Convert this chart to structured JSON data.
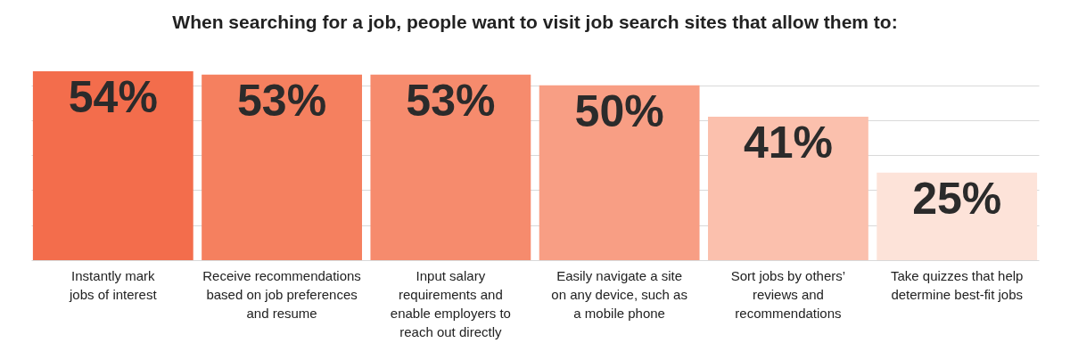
{
  "chart_data": {
    "type": "bar",
    "title": "When searching for a job, people want to visit job search sites that allow them to:",
    "categories": [
      "Instantly mark\njobs of interest",
      "Receive recommendations\nbased on job preferences\nand resume",
      "Input salary\nrequirements and\nenable employers to\nreach out directly",
      "Easily navigate a site\non any device, such as\na mobile phone",
      "Sort jobs by others’\nreviews and\nrecommendations",
      "Take quizzes that help\ndetermine best-fit jobs"
    ],
    "values": [
      54,
      53,
      53,
      50,
      41,
      25
    ],
    "colors": [
      "#f36d4c",
      "#f5805f",
      "#f68b6d",
      "#f89e84",
      "#fbc0ad",
      "#fde3d9"
    ],
    "value_labels": [
      "54%",
      "53%",
      "53%",
      "50%",
      "41%",
      "25%"
    ],
    "grid": "y",
    "tick_labels": "x"
  }
}
